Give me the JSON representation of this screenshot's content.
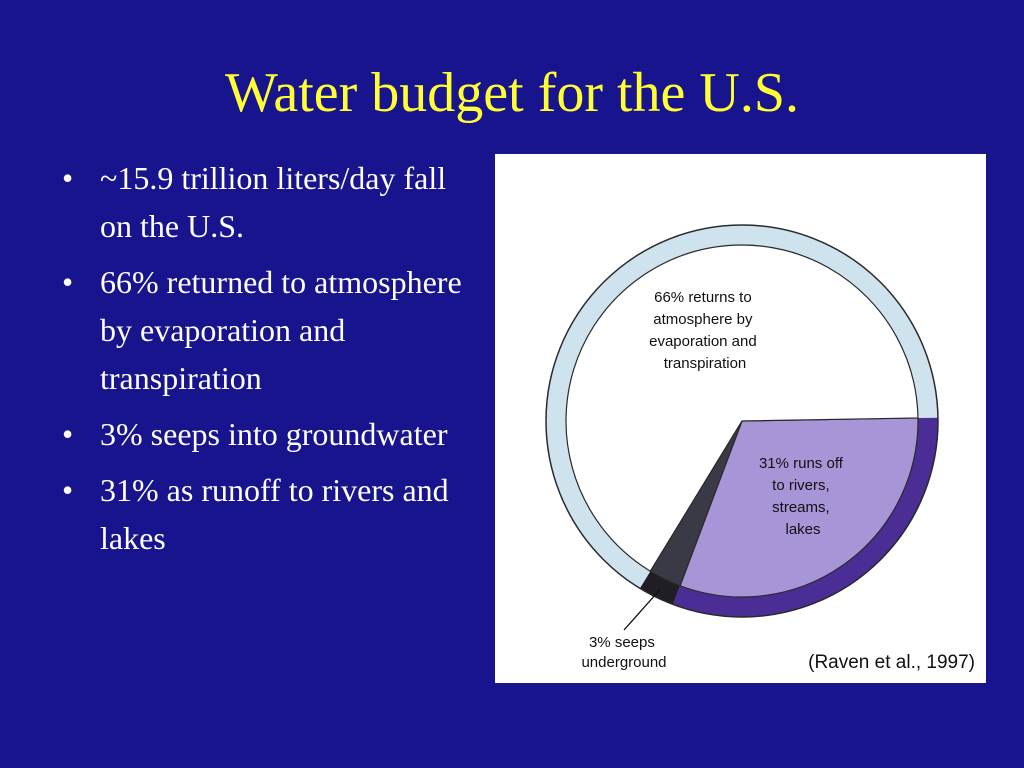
{
  "slide": {
    "title": "Water budget for the U.S.",
    "bullets": [
      "~15.9 trillion liters/day fall on the U.S.",
      "66% returned to atmosphere by evaporation and transpiration",
      "3% seeps into groundwater",
      "31% as runoff to rivers and lakes"
    ],
    "bullet_symbol": "•"
  },
  "chart_data": {
    "type": "pie",
    "title": "",
    "slices": [
      {
        "label": "66% returns to atmosphere by evaporation and transpiration",
        "value": 66,
        "color": "#ffffff"
      },
      {
        "label": "31% runs off to rivers, streams, lakes",
        "value": 31,
        "color": "#a795d8"
      },
      {
        "label": "3% seeps underground",
        "value": 3,
        "color": "#3a3a46"
      }
    ],
    "label_lines": {
      "evaporation": [
        "66% returns to",
        "atmosphere by",
        "evaporation and",
        "transpiration"
      ],
      "runoff": [
        "31% runs off",
        "to rivers,",
        "streams,",
        "lakes"
      ],
      "seeps": [
        "3% seeps",
        "underground"
      ]
    },
    "citation": "(Raven et al., 1997)",
    "colors": {
      "rim_light": "#cfe3ee",
      "rim_dark": "#4a2d95",
      "outline": "#2a2a2a"
    }
  }
}
